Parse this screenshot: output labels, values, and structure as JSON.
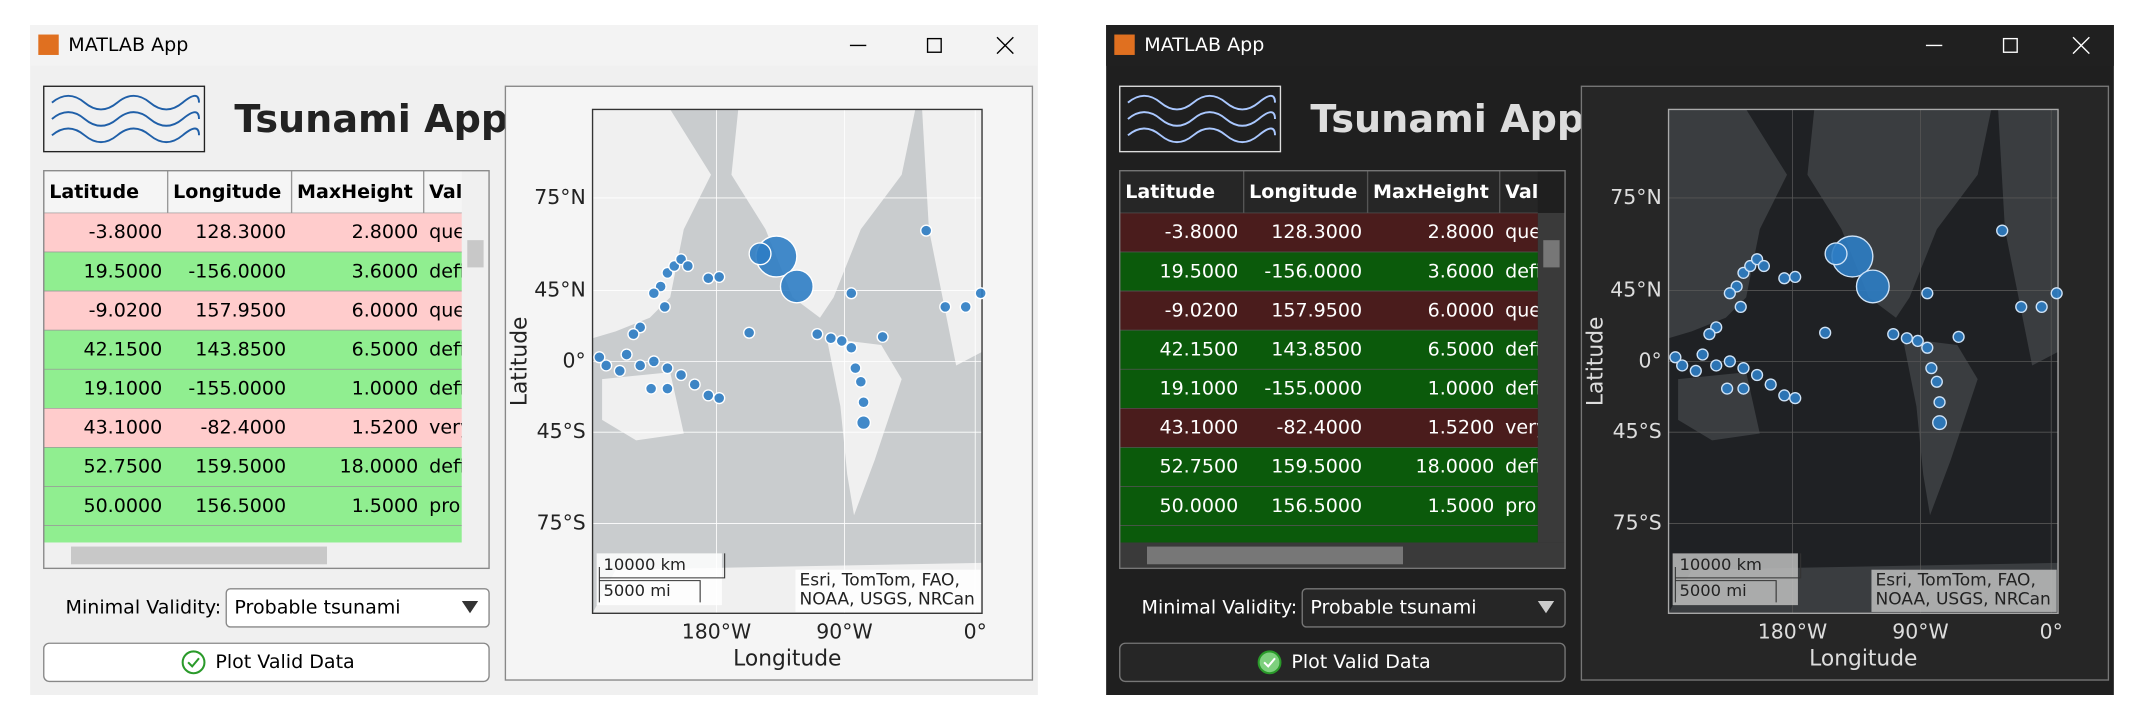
{
  "windows": [
    {
      "title_bar": "MATLAB App",
      "app_title": "Tsunami App",
      "table": {
        "columns": [
          "Latitude",
          "Longitude",
          "MaxHeight",
          "Vali"
        ],
        "rows": [
          [
            "-3.8000",
            "128.3000",
            "2.8000",
            "que"
          ],
          [
            "19.5000",
            "-156.0000",
            "3.6000",
            "defi"
          ],
          [
            "-9.0200",
            "157.9500",
            "6.0000",
            "que"
          ],
          [
            "42.1500",
            "143.8500",
            "6.5000",
            "defi"
          ],
          [
            "19.1000",
            "-155.0000",
            "1.0000",
            "defi"
          ],
          [
            "43.1000",
            "-82.4000",
            "1.5200",
            "very"
          ],
          [
            "52.7500",
            "159.5000",
            "18.0000",
            "defi"
          ],
          [
            "50.0000",
            "156.5000",
            "1.5000",
            "prol"
          ]
        ],
        "row_colors": [
          "#ffcccc",
          "#90ee90",
          "#ffcccc",
          "#90ee90",
          "#90ee90",
          "#ffcccc",
          "#90ee90",
          "#90ee90"
        ]
      },
      "validity_label": "Minimal Validity:",
      "validity_value": "Probable tsunami",
      "button": "Plot Valid Data",
      "map": {
        "ylabel": "Latitude",
        "xlabel": "Longitude",
        "lat_ticks": [
          "75°N",
          "45°N",
          "0°",
          "45°S",
          "75°S"
        ],
        "lon_ticks": [
          "180°W",
          "90°W",
          "0°"
        ],
        "scale_bar": [
          "10000 km",
          "5000 mi"
        ],
        "attribution": [
          "Esri, TomTom, FAO,",
          "NOAA, USGS, NRCan"
        ]
      }
    },
    {
      "title_bar": "MATLAB App",
      "app_title": "Tsunami App",
      "table": {
        "columns": [
          "Latitude",
          "Longitude",
          "MaxHeight",
          "Vali"
        ],
        "rows": [
          [
            "-3.8000",
            "128.3000",
            "2.8000",
            "que"
          ],
          [
            "19.5000",
            "-156.0000",
            "3.6000",
            "defi"
          ],
          [
            "-9.0200",
            "157.9500",
            "6.0000",
            "que"
          ],
          [
            "42.1500",
            "143.8500",
            "6.5000",
            "defi"
          ],
          [
            "19.1000",
            "-155.0000",
            "1.0000",
            "defi"
          ],
          [
            "43.1000",
            "-82.4000",
            "1.5200",
            "very"
          ],
          [
            "52.7500",
            "159.5000",
            "18.0000",
            "defi"
          ],
          [
            "50.0000",
            "156.5000",
            "1.5000",
            "prol"
          ]
        ],
        "row_colors": [
          "#4a1c1c",
          "#0b5a0b",
          "#4a1c1c",
          "#0b5a0b",
          "#0b5a0b",
          "#4a1c1c",
          "#0b5a0b",
          "#0b5a0b"
        ]
      },
      "validity_label": "Minimal Validity:",
      "validity_value": "Probable tsunami",
      "button": "Plot Valid Data",
      "map": {
        "ylabel": "Latitude",
        "xlabel": "Longitude",
        "lat_ticks": [
          "75°N",
          "45°N",
          "0°",
          "45°S",
          "75°S"
        ],
        "lon_ticks": [
          "180°W",
          "90°W",
          "0°"
        ],
        "scale_bar": [
          "10000 km",
          "5000 mi"
        ],
        "attribution": [
          "Esri, TomTom, FAO,",
          "NOAA, USGS, NRCan"
        ]
      }
    }
  ]
}
